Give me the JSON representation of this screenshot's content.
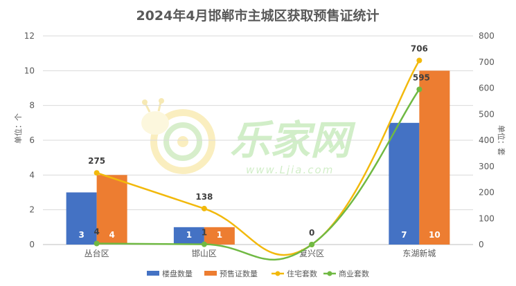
{
  "chart_data": {
    "type": "bar",
    "title": "2024年4月邯郸市主城区获取预售证统计",
    "categories": [
      "丛台区",
      "邯山区",
      "复兴区",
      "东湖新城"
    ],
    "ylabel_left": "单位：个",
    "ylabel_right": "单位：套",
    "ylim_left": [
      0,
      12
    ],
    "ylim_right": [
      0,
      800
    ],
    "yticks_left": [
      "0",
      "2",
      "4",
      "6",
      "8",
      "10",
      "12"
    ],
    "yticks_right": [
      "0",
      "100",
      "200",
      "300",
      "400",
      "500",
      "600",
      "700",
      "800"
    ],
    "grid": true,
    "legend_position": "bottom",
    "series": [
      {
        "name": "楼盘数量",
        "type": "bar",
        "axis": "left",
        "color": "#4472c4",
        "values": [
          3,
          1,
          0,
          7
        ],
        "labels": [
          "3",
          "1",
          "",
          "7"
        ]
      },
      {
        "name": "预售证数量",
        "type": "bar",
        "axis": "left",
        "color": "#ed7d31",
        "values": [
          4,
          1,
          0,
          10
        ],
        "labels": [
          "4",
          "1",
          "",
          "10"
        ]
      },
      {
        "name": "住宅套数",
        "type": "line",
        "axis": "right",
        "color": "#f2b90c",
        "values": [
          275,
          138,
          0,
          706
        ],
        "labels": [
          "275",
          "138",
          "",
          "706"
        ]
      },
      {
        "name": "商业套数",
        "type": "line",
        "axis": "right",
        "color": "#70b943",
        "values": [
          4,
          1,
          0,
          595
        ],
        "labels": [
          "4",
          "1",
          "0",
          "595"
        ]
      }
    ]
  },
  "watermark": {
    "text": "乐家网",
    "url": "www.Ljia.com"
  }
}
